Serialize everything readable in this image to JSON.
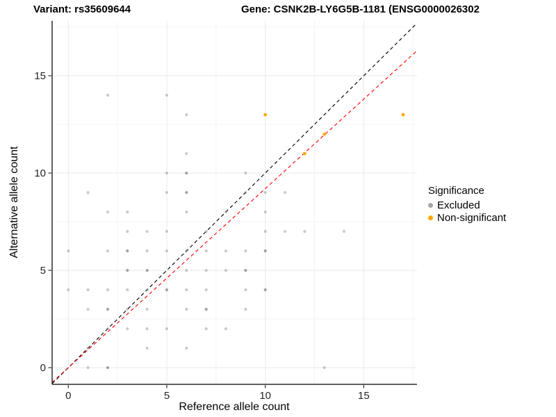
{
  "titles": {
    "variant": "Variant: rs35609644",
    "gene": "Gene: CSNK2B-LY6G5B-1181 (ENSG0000026302"
  },
  "legend": {
    "title": "Significance",
    "items": [
      {
        "label": "Excluded",
        "color": "#A6A6A6"
      },
      {
        "label": "Non-significant",
        "color": "#FFA500"
      }
    ]
  },
  "chart_data": {
    "type": "scatter",
    "xlabel": "Reference allele count",
    "ylabel": "Alternative allele count",
    "x_ticks": [
      0,
      5,
      10,
      15
    ],
    "y_ticks": [
      0,
      5,
      10,
      15
    ],
    "minor_ticks": [
      2.5,
      7.5,
      12.5,
      17.5
    ],
    "xlim": [
      -0.82,
      17.7
    ],
    "ylim": [
      -0.86,
      17.8
    ],
    "grid": "major+minor",
    "legend_position": "right",
    "series": [
      {
        "name": "Excluded",
        "color": "#808080",
        "points": [
          [
            0,
            4
          ],
          [
            0,
            6
          ],
          [
            1,
            0
          ],
          [
            1,
            1
          ],
          [
            1,
            3
          ],
          [
            1,
            4
          ],
          [
            1,
            9
          ],
          [
            2,
            0,
            2
          ],
          [
            2,
            2
          ],
          [
            2,
            3,
            2
          ],
          [
            2,
            4
          ],
          [
            2,
            6
          ],
          [
            2,
            8
          ],
          [
            2,
            14
          ],
          [
            3,
            2
          ],
          [
            3,
            3
          ],
          [
            3,
            4
          ],
          [
            3,
            5,
            2
          ],
          [
            3,
            6,
            2
          ],
          [
            3,
            7
          ],
          [
            3,
            8
          ],
          [
            4,
            1
          ],
          [
            4,
            2
          ],
          [
            4,
            3
          ],
          [
            4,
            4
          ],
          [
            4,
            5,
            2
          ],
          [
            4,
            6
          ],
          [
            4,
            7
          ],
          [
            5,
            2
          ],
          [
            5,
            4,
            2
          ],
          [
            5,
            6
          ],
          [
            5,
            7
          ],
          [
            5,
            9
          ],
          [
            5,
            10
          ],
          [
            5,
            14
          ],
          [
            6,
            1
          ],
          [
            6,
            3
          ],
          [
            6,
            4
          ],
          [
            6,
            5
          ],
          [
            6,
            6
          ],
          [
            6,
            8
          ],
          [
            6,
            9,
            2
          ],
          [
            6,
            10,
            2
          ],
          [
            6,
            11
          ],
          [
            6,
            13
          ],
          [
            7,
            2
          ],
          [
            7,
            3,
            2
          ],
          [
            7,
            4
          ],
          [
            7,
            5
          ],
          [
            7,
            6
          ],
          [
            7,
            7
          ],
          [
            8,
            2
          ],
          [
            8,
            5
          ],
          [
            8,
            6
          ],
          [
            8,
            8
          ],
          [
            9,
            3
          ],
          [
            9,
            4
          ],
          [
            9,
            5,
            2
          ],
          [
            9,
            6
          ],
          [
            9,
            9
          ],
          [
            9,
            10
          ],
          [
            10,
            4,
            2
          ],
          [
            10,
            6,
            2
          ],
          [
            10,
            7
          ],
          [
            10,
            8
          ],
          [
            10,
            9
          ],
          [
            11,
            7
          ],
          [
            11,
            9
          ],
          [
            12,
            7
          ],
          [
            13,
            0
          ],
          [
            14,
            7
          ]
        ]
      },
      {
        "name": "Non-significant",
        "color": "#FFA500",
        "points": [
          [
            10,
            13
          ],
          [
            12,
            11
          ],
          [
            13,
            12
          ],
          [
            17,
            13
          ]
        ]
      }
    ],
    "lines": [
      {
        "name": "identity",
        "slope": 1,
        "intercept": 0,
        "color": "#000000",
        "style": "dashed"
      },
      {
        "name": "trend",
        "slope": 0.92,
        "intercept": 0,
        "color": "#FF0000",
        "style": "dashed"
      }
    ]
  }
}
